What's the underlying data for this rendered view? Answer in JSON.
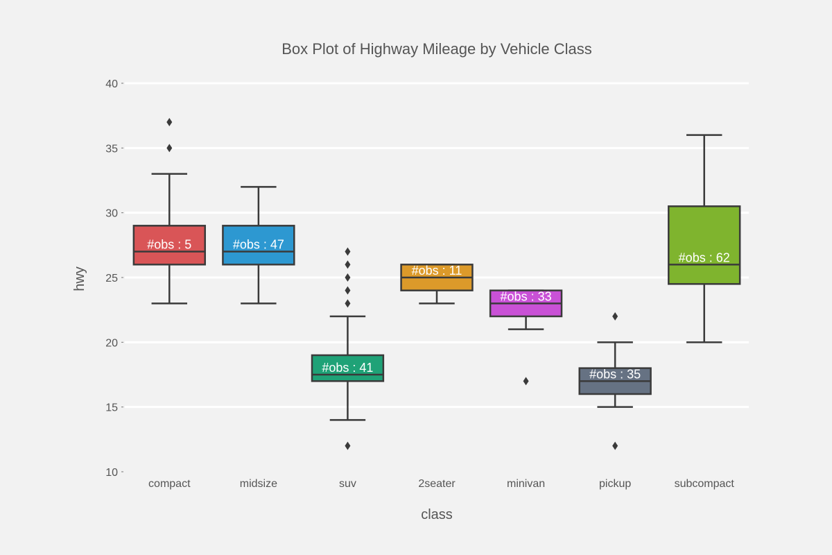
{
  "chart_data": {
    "type": "box",
    "title": "Box Plot of Highway Mileage by Vehicle Class",
    "xlabel": "class",
    "ylabel": "hwy",
    "ylim": [
      10,
      40
    ],
    "yticks": [
      10,
      15,
      20,
      25,
      30,
      35,
      40
    ],
    "grid": "horizontal",
    "categories": [
      "compact",
      "midsize",
      "suv",
      "2seater",
      "minivan",
      "pickup",
      "subcompact"
    ],
    "boxes": [
      {
        "category": "compact",
        "q1": 26,
        "median": 27,
        "q3": 29,
        "whisker_low": 23,
        "whisker_high": 33,
        "outliers": [
          35,
          37
        ],
        "label": "#obs : 5",
        "color": "#d95557"
      },
      {
        "category": "midsize",
        "q1": 26,
        "median": 27,
        "q3": 29,
        "whisker_low": 23,
        "whisker_high": 32,
        "outliers": [],
        "label": "#obs : 47",
        "color": "#2d98d1"
      },
      {
        "category": "suv",
        "q1": 17,
        "median": 17.5,
        "q3": 19,
        "whisker_low": 14,
        "whisker_high": 22,
        "outliers": [
          12,
          23,
          24,
          25,
          26,
          27
        ],
        "label": "#obs : 41",
        "color": "#1fa277"
      },
      {
        "category": "2seater",
        "q1": 24,
        "median": 25,
        "q3": 26,
        "whisker_low": 23,
        "whisker_high": 26,
        "outliers": [],
        "label": "#obs : 11",
        "color": "#dc9a2a"
      },
      {
        "category": "minivan",
        "q1": 22,
        "median": 23,
        "q3": 24,
        "whisker_low": 21,
        "whisker_high": 24,
        "outliers": [
          17
        ],
        "label": "#obs : 33",
        "color": "#c951d6"
      },
      {
        "category": "pickup",
        "q1": 16,
        "median": 17,
        "q3": 18,
        "whisker_low": 15,
        "whisker_high": 20,
        "outliers": [
          12,
          22
        ],
        "label": "#obs : 35",
        "color": "#667283"
      },
      {
        "category": "subcompact",
        "q1": 24.5,
        "median": 26,
        "q3": 30.5,
        "whisker_low": 20,
        "whisker_high": 36,
        "outliers": [],
        "label": "#obs : 62",
        "color": "#7fb42e"
      }
    ],
    "colors": {
      "background": "#f2f2f2",
      "gridline": "#ffffff",
      "box_outline": "#3a3a3a",
      "text": "#555555",
      "obs_text": "#ffffff"
    }
  }
}
